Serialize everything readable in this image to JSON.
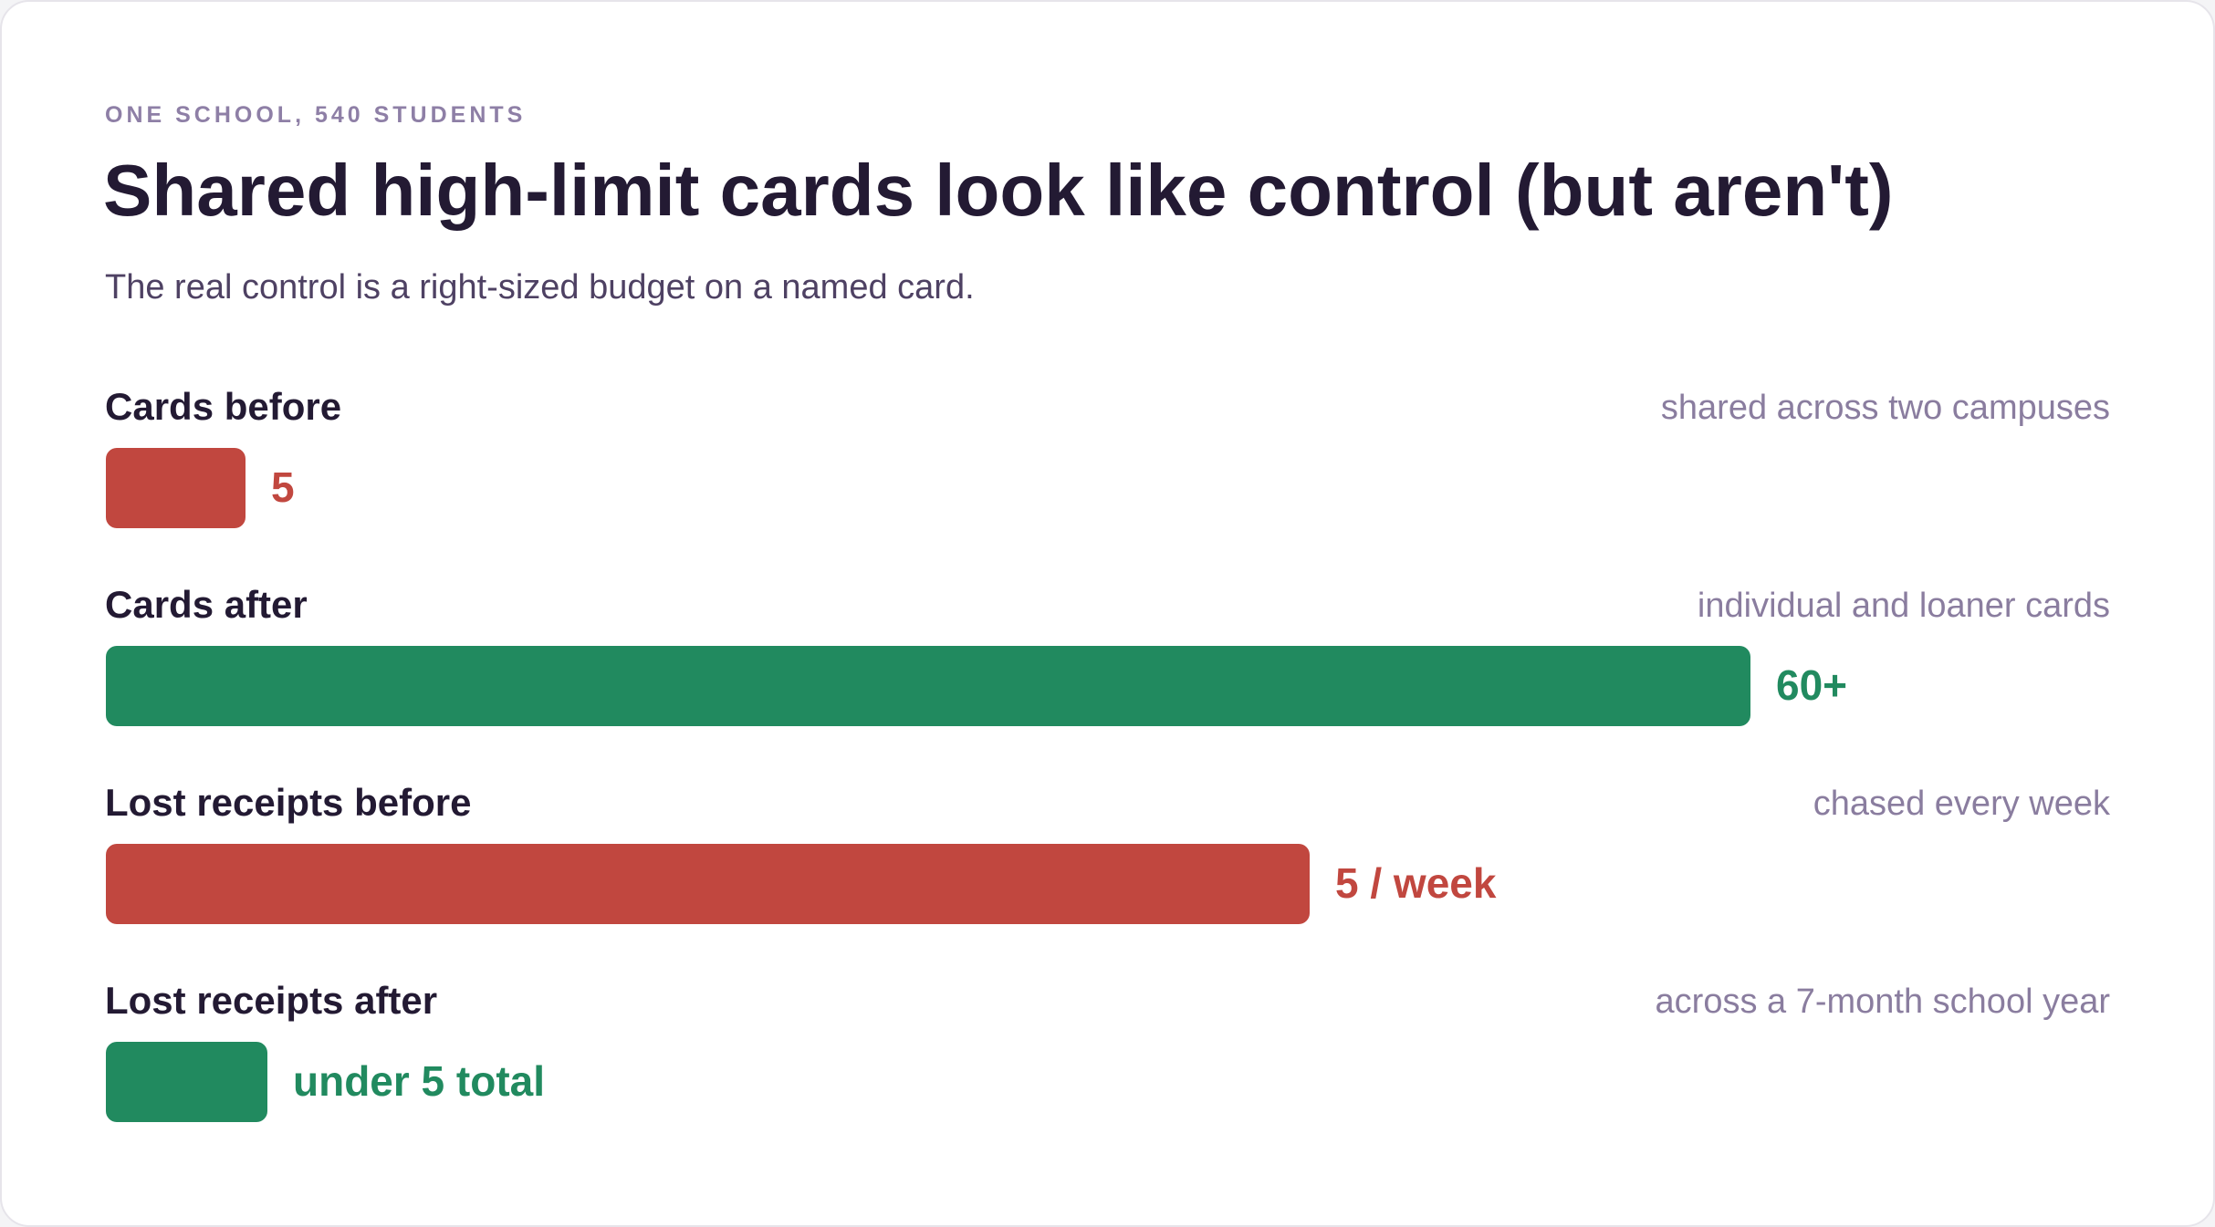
{
  "eyebrow": "ONE SCHOOL, 540 STUDENTS",
  "title": "Shared high-limit cards look like control (but aren't)",
  "subtitle": "The real control is a right-sized budget on a named card.",
  "colors": {
    "bad": "#c1473f",
    "good": "#218a5f",
    "title": "#231a33",
    "muted": "#8a7d9f"
  },
  "chart_data": {
    "type": "bar",
    "orientation": "horizontal",
    "categories": [
      "Cards before",
      "Cards after",
      "Lost receipts before",
      "Lost receipts after"
    ],
    "notes": [
      "shared across two campuses",
      "individual and loaner cards",
      "chased every week",
      "across a 7-month school year"
    ],
    "value_labels": [
      "5",
      "60+",
      "5 / week",
      "under 5 total"
    ],
    "relative_lengths": [
      0.085,
      1.0,
      0.732,
      0.098
    ],
    "statuses": [
      "bad",
      "good",
      "bad",
      "good"
    ],
    "grid": false,
    "legend": "none"
  }
}
